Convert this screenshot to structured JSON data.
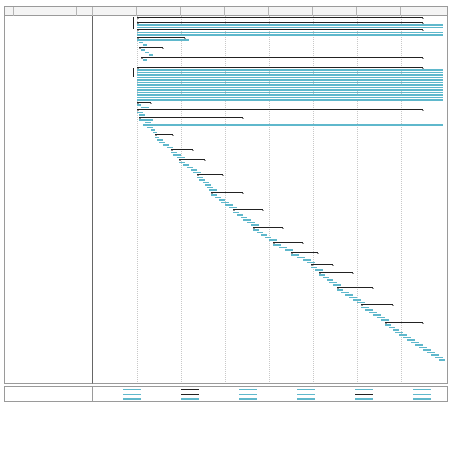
{
  "header": {
    "id_col": "",
    "name_col": "",
    "dur_col": "",
    "periods": [
      "",
      "",
      "",
      "",
      "",
      "",
      "",
      ""
    ]
  },
  "tasks": [
    {
      "id": "",
      "name": "",
      "dur": "",
      "s": true
    },
    {
      "id": "",
      "name": "",
      "dur": "",
      "s": false
    },
    {
      "id": "",
      "name": "",
      "dur": "",
      "s": true
    },
    {
      "id": "",
      "name": "",
      "dur": "",
      "s": false
    },
    {
      "id": "",
      "name": "",
      "dur": "",
      "s": false
    },
    {
      "id": "",
      "name": "",
      "dur": "",
      "s": true
    },
    {
      "id": "",
      "name": "",
      "dur": "",
      "s": false
    },
    {
      "id": "",
      "name": "",
      "dur": "",
      "s": false
    },
    {
      "id": "",
      "name": "",
      "dur": "",
      "s": true
    },
    {
      "id": "",
      "name": "",
      "dur": "",
      "s": false
    },
    {
      "id": "",
      "name": "",
      "dur": "",
      "s": false
    },
    {
      "id": "",
      "name": "",
      "dur": "",
      "s": false
    },
    {
      "id": "",
      "name": "",
      "dur": "",
      "s": true
    },
    {
      "id": "",
      "name": "",
      "dur": "",
      "s": false
    },
    {
      "id": "",
      "name": "",
      "dur": "",
      "s": false
    },
    {
      "id": "",
      "name": "",
      "dur": "",
      "s": false
    },
    {
      "id": "",
      "name": "",
      "dur": "",
      "s": true
    },
    {
      "id": "",
      "name": "",
      "dur": "",
      "s": false
    },
    {
      "id": "",
      "name": "",
      "dur": "",
      "s": false
    },
    {
      "id": "",
      "name": "",
      "dur": "",
      "s": false
    },
    {
      "id": "",
      "name": "",
      "dur": "",
      "s": true
    },
    {
      "id": "",
      "name": "",
      "dur": "",
      "s": false
    },
    {
      "id": "",
      "name": "",
      "dur": "",
      "s": false
    },
    {
      "id": "",
      "name": "",
      "dur": "",
      "s": false
    },
    {
      "id": "",
      "name": "",
      "dur": "",
      "s": false
    },
    {
      "id": "",
      "name": "",
      "dur": "",
      "s": false
    },
    {
      "id": "",
      "name": "",
      "dur": "",
      "s": false
    },
    {
      "id": "",
      "name": "",
      "dur": "",
      "s": false
    },
    {
      "id": "",
      "name": "",
      "dur": "",
      "s": false
    },
    {
      "id": "",
      "name": "",
      "dur": "",
      "s": false
    },
    {
      "id": "",
      "name": "",
      "dur": "",
      "s": false
    },
    {
      "id": "",
      "name": "",
      "dur": "",
      "s": false
    },
    {
      "id": "",
      "name": "",
      "dur": "",
      "s": false
    },
    {
      "id": "",
      "name": "",
      "dur": "",
      "s": false
    },
    {
      "id": "",
      "name": "",
      "dur": "",
      "s": true
    },
    {
      "id": "",
      "name": "",
      "dur": "",
      "s": false
    },
    {
      "id": "",
      "name": "",
      "dur": "",
      "s": false
    },
    {
      "id": "",
      "name": "",
      "dur": "",
      "s": true
    },
    {
      "id": "",
      "name": "",
      "dur": "",
      "s": false
    },
    {
      "id": "",
      "name": "",
      "dur": "",
      "s": false
    },
    {
      "id": "",
      "name": "",
      "dur": "",
      "s": true
    },
    {
      "id": "",
      "name": "",
      "dur": "",
      "s": false
    },
    {
      "id": "",
      "name": "",
      "dur": "",
      "s": false
    },
    {
      "id": "",
      "name": "",
      "dur": "",
      "s": false
    },
    {
      "id": "",
      "name": "",
      "dur": "",
      "s": false
    },
    {
      "id": "",
      "name": "",
      "dur": "",
      "s": false
    },
    {
      "id": "",
      "name": "",
      "dur": "",
      "s": false
    },
    {
      "id": "",
      "name": "",
      "dur": "",
      "s": true
    },
    {
      "id": "",
      "name": "",
      "dur": "",
      "s": false
    },
    {
      "id": "",
      "name": "",
      "dur": "",
      "s": false
    },
    {
      "id": "",
      "name": "",
      "dur": "",
      "s": false
    },
    {
      "id": "",
      "name": "",
      "dur": "",
      "s": false
    },
    {
      "id": "",
      "name": "",
      "dur": "",
      "s": false
    },
    {
      "id": "",
      "name": "",
      "dur": "",
      "s": true
    },
    {
      "id": "",
      "name": "",
      "dur": "",
      "s": false
    },
    {
      "id": "",
      "name": "",
      "dur": "",
      "s": false
    },
    {
      "id": "",
      "name": "",
      "dur": "",
      "s": false
    },
    {
      "id": "",
      "name": "",
      "dur": "",
      "s": true
    },
    {
      "id": "",
      "name": "",
      "dur": "",
      "s": false
    },
    {
      "id": "",
      "name": "",
      "dur": "",
      "s": false
    },
    {
      "id": "",
      "name": "",
      "dur": "",
      "s": false
    },
    {
      "id": "",
      "name": "",
      "dur": "",
      "s": false
    },
    {
      "id": "",
      "name": "",
      "dur": "",
      "s": false
    },
    {
      "id": "",
      "name": "",
      "dur": "",
      "s": true
    },
    {
      "id": "",
      "name": "",
      "dur": "",
      "s": false
    },
    {
      "id": "",
      "name": "",
      "dur": "",
      "s": false
    },
    {
      "id": "",
      "name": "",
      "dur": "",
      "s": false
    },
    {
      "id": "",
      "name": "",
      "dur": "",
      "s": false
    },
    {
      "id": "",
      "name": "",
      "dur": "",
      "s": false
    },
    {
      "id": "",
      "name": "",
      "dur": "",
      "s": false
    },
    {
      "id": "",
      "name": "",
      "dur": "",
      "s": true
    },
    {
      "id": "",
      "name": "",
      "dur": "",
      "s": false
    },
    {
      "id": "",
      "name": "",
      "dur": "",
      "s": false
    },
    {
      "id": "",
      "name": "",
      "dur": "",
      "s": false
    },
    {
      "id": "",
      "name": "",
      "dur": "",
      "s": false
    },
    {
      "id": "",
      "name": "",
      "dur": "",
      "s": false
    },
    {
      "id": "",
      "name": "",
      "dur": "",
      "s": false
    },
    {
      "id": "",
      "name": "",
      "dur": "",
      "s": true
    },
    {
      "id": "",
      "name": "",
      "dur": "",
      "s": false
    },
    {
      "id": "",
      "name": "",
      "dur": "",
      "s": false
    },
    {
      "id": "",
      "name": "",
      "dur": "",
      "s": false
    },
    {
      "id": "",
      "name": "",
      "dur": "",
      "s": false
    },
    {
      "id": "",
      "name": "",
      "dur": "",
      "s": false
    },
    {
      "id": "",
      "name": "",
      "dur": "",
      "s": false
    },
    {
      "id": "",
      "name": "",
      "dur": "",
      "s": true
    },
    {
      "id": "",
      "name": "",
      "dur": "",
      "s": false
    },
    {
      "id": "",
      "name": "",
      "dur": "",
      "s": false
    },
    {
      "id": "",
      "name": "",
      "dur": "",
      "s": false
    },
    {
      "id": "",
      "name": "",
      "dur": "",
      "s": false
    },
    {
      "id": "",
      "name": "",
      "dur": "",
      "s": false
    },
    {
      "id": "",
      "name": "",
      "dur": "",
      "s": true
    },
    {
      "id": "",
      "name": "",
      "dur": "",
      "s": false
    },
    {
      "id": "",
      "name": "",
      "dur": "",
      "s": false
    },
    {
      "id": "",
      "name": "",
      "dur": "",
      "s": false
    },
    {
      "id": "",
      "name": "",
      "dur": "",
      "s": true
    },
    {
      "id": "",
      "name": "",
      "dur": "",
      "s": false
    },
    {
      "id": "",
      "name": "",
      "dur": "",
      "s": false
    },
    {
      "id": "",
      "name": "",
      "dur": "",
      "s": false
    },
    {
      "id": "",
      "name": "",
      "dur": "",
      "s": false
    },
    {
      "id": "",
      "name": "",
      "dur": "",
      "s": true
    },
    {
      "id": "",
      "name": "",
      "dur": "",
      "s": false
    },
    {
      "id": "",
      "name": "",
      "dur": "",
      "s": false
    },
    {
      "id": "",
      "name": "",
      "dur": "",
      "s": true
    },
    {
      "id": "",
      "name": "",
      "dur": "",
      "s": false
    },
    {
      "id": "",
      "name": "",
      "dur": "",
      "s": false
    },
    {
      "id": "",
      "name": "",
      "dur": "",
      "s": false
    },
    {
      "id": "",
      "name": "",
      "dur": "",
      "s": false
    },
    {
      "id": "",
      "name": "",
      "dur": "",
      "s": false
    },
    {
      "id": "",
      "name": "",
      "dur": "",
      "s": true
    },
    {
      "id": "",
      "name": "",
      "dur": "",
      "s": false
    },
    {
      "id": "",
      "name": "",
      "dur": "",
      "s": false
    },
    {
      "id": "",
      "name": "",
      "dur": "",
      "s": false
    },
    {
      "id": "",
      "name": "",
      "dur": "",
      "s": false
    },
    {
      "id": "",
      "name": "",
      "dur": "",
      "s": false
    },
    {
      "id": "",
      "name": "",
      "dur": "",
      "s": false
    },
    {
      "id": "",
      "name": "",
      "dur": "",
      "s": true
    },
    {
      "id": "",
      "name": "",
      "dur": "",
      "s": false
    },
    {
      "id": "",
      "name": "",
      "dur": "",
      "s": false
    },
    {
      "id": "",
      "name": "",
      "dur": "",
      "s": false
    },
    {
      "id": "",
      "name": "",
      "dur": "",
      "s": false
    },
    {
      "id": "",
      "name": "",
      "dur": "",
      "s": false
    },
    {
      "id": "",
      "name": "",
      "dur": "",
      "s": false
    },
    {
      "id": "",
      "name": "",
      "dur": "",
      "s": true
    },
    {
      "id": "",
      "name": "",
      "dur": "",
      "s": false
    },
    {
      "id": "",
      "name": "",
      "dur": "",
      "s": false
    },
    {
      "id": "",
      "name": "",
      "dur": "",
      "s": false
    },
    {
      "id": "",
      "name": "",
      "dur": "",
      "s": false
    },
    {
      "id": "",
      "name": "",
      "dur": "",
      "s": false
    },
    {
      "id": "",
      "name": "",
      "dur": "",
      "s": false
    },
    {
      "id": "",
      "name": "",
      "dur": "",
      "s": false
    },
    {
      "id": "",
      "name": "",
      "dur": "",
      "s": false
    },
    {
      "id": "",
      "name": "",
      "dur": "",
      "s": false
    },
    {
      "id": "",
      "name": "",
      "dur": "",
      "s": false
    },
    {
      "id": "",
      "name": "",
      "dur": "",
      "s": false
    },
    {
      "id": "",
      "name": "",
      "dur": "",
      "s": false
    },
    {
      "id": "",
      "name": "",
      "dur": "",
      "s": false
    },
    {
      "id": "",
      "name": "",
      "dur": "",
      "s": false
    },
    {
      "id": "",
      "name": "",
      "dur": "",
      "s": false
    }
  ],
  "legend": {
    "project_label": "",
    "project_name": "",
    "project_date": "",
    "items": [
      {
        "label": "",
        "kind": "task"
      },
      {
        "label": "",
        "kind": "split"
      },
      {
        "label": "",
        "kind": "milestone"
      },
      {
        "label": "",
        "kind": "summary"
      },
      {
        "label": "",
        "kind": "project-summary"
      },
      {
        "label": "",
        "kind": "external-tasks"
      },
      {
        "label": "",
        "kind": "external-milestone"
      },
      {
        "label": "",
        "kind": "inactive-task"
      },
      {
        "label": "",
        "kind": "inactive-milestone"
      },
      {
        "label": "",
        "kind": "inactive-summary"
      },
      {
        "label": "",
        "kind": "manual-task"
      },
      {
        "label": "",
        "kind": "duration-only"
      },
      {
        "label": "",
        "kind": "manual-summary-rollup"
      },
      {
        "label": "",
        "kind": "manual-summary"
      },
      {
        "label": "",
        "kind": "start-only"
      },
      {
        "label": "",
        "kind": "finish-only"
      },
      {
        "label": "",
        "kind": "deadline"
      },
      {
        "label": "",
        "kind": "progress"
      }
    ]
  },
  "footer": {
    "page_label": ""
  },
  "colors": {
    "task_bar": "#5fb8cc",
    "summary_bar": "#222222",
    "grid": "#c8c8c8"
  }
}
